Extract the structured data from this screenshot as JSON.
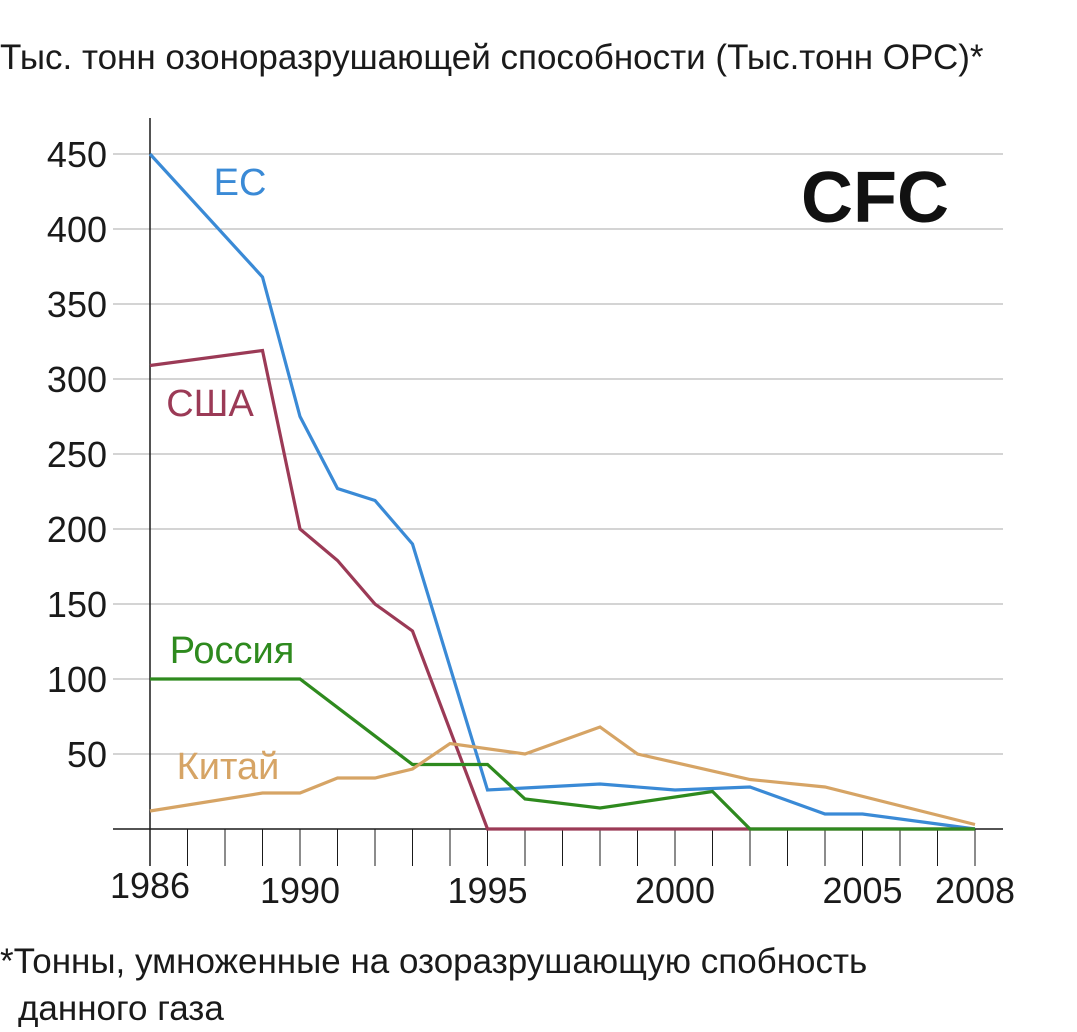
{
  "chart_data": {
    "type": "line",
    "title": "CFC",
    "ylabel": "Тыс. тонн озоноразрушающей способности (Тыс.тонн ОРС)*",
    "xlabel": "",
    "footnote_line1": "*Тонны, умноженные на озоразрушающую спобность",
    "footnote_line2": "данного газа",
    "xlim": [
      1986,
      2008
    ],
    "ylim": [
      0,
      470
    ],
    "x_ticks": [
      1986,
      1987,
      1988,
      1989,
      1990,
      1991,
      1992,
      1993,
      1994,
      1995,
      1996,
      1997,
      1998,
      1999,
      2000,
      2001,
      2002,
      2003,
      2004,
      2005,
      2006,
      2007,
      2008
    ],
    "x_tick_labels": [
      {
        "x": 1986,
        "label": "1986"
      },
      {
        "x": 1990,
        "label": "1990"
      },
      {
        "x": 1995,
        "label": "1995"
      },
      {
        "x": 2000,
        "label": "2000"
      },
      {
        "x": 2005,
        "label": "2005"
      },
      {
        "x": 2008,
        "label": "2008"
      }
    ],
    "y_ticks": [
      50,
      100,
      150,
      200,
      250,
      300,
      350,
      400,
      450
    ],
    "y_tick_labels": [
      "50",
      "100",
      "150",
      "200",
      "250",
      "300",
      "350",
      "400",
      "450"
    ],
    "grid": "horizontal",
    "series": [
      {
        "name": "ЕС",
        "color": "#3a8ad6",
        "points": [
          [
            1986,
            450
          ],
          [
            1989,
            368
          ],
          [
            1990,
            275
          ],
          [
            1991,
            227
          ],
          [
            1992,
            219
          ],
          [
            1993,
            190
          ],
          [
            1995,
            26
          ],
          [
            1998,
            30
          ],
          [
            2000,
            26
          ],
          [
            2002,
            28
          ],
          [
            2004,
            10
          ],
          [
            2005,
            10
          ],
          [
            2008,
            0
          ]
        ]
      },
      {
        "name": "США",
        "color": "#9b3a56",
        "points": [
          [
            1986,
            309
          ],
          [
            1989,
            319
          ],
          [
            1990,
            200
          ],
          [
            1991,
            179
          ],
          [
            1992,
            150
          ],
          [
            1993,
            132
          ],
          [
            1995,
            0
          ],
          [
            2008,
            0
          ]
        ]
      },
      {
        "name": "Россия",
        "color": "#2e8a1e",
        "points": [
          [
            1986,
            100
          ],
          [
            1990,
            100
          ],
          [
            1993,
            43
          ],
          [
            1995,
            43
          ],
          [
            1996,
            20
          ],
          [
            1998,
            14
          ],
          [
            2001,
            25
          ],
          [
            2002,
            0
          ],
          [
            2008,
            0
          ]
        ]
      },
      {
        "name": "Китай",
        "color": "#d6a465",
        "points": [
          [
            1986,
            12
          ],
          [
            1989,
            24
          ],
          [
            1990,
            24
          ],
          [
            1991,
            34
          ],
          [
            1992,
            34
          ],
          [
            1993,
            40
          ],
          [
            1994,
            57
          ],
          [
            1996,
            50
          ],
          [
            1998,
            68
          ],
          [
            1999,
            50
          ],
          [
            2002,
            33
          ],
          [
            2004,
            28
          ],
          [
            2008,
            3
          ]
        ]
      }
    ]
  }
}
